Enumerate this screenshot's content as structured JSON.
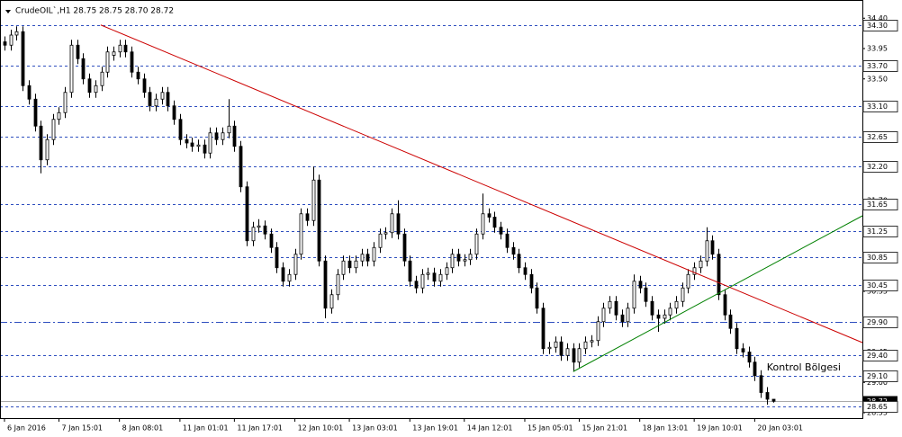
{
  "chart_data": {
    "type": "candlestick",
    "title": "CrudeOIL`,H1  28.75 28.75 28.70 28.72",
    "annotation": {
      "text": "Kontrol Bölgesi",
      "x": 126,
      "price": 29.22
    },
    "xlim": [
      -0.74,
      141.8
    ],
    "ylim": [
      28.47,
      34.67
    ],
    "candle_colors": {
      "up": "#ffffff",
      "down": "#000000",
      "outline": "#000000"
    },
    "level_color": "#2f4fbf",
    "yticks": [
      {
        "value": 34.4,
        "label": "34.40"
      },
      {
        "value": 33.95,
        "label": "33.95"
      },
      {
        "value": 33.5,
        "label": "33.50"
      },
      {
        "value": 33.05,
        "label": "33.05"
      },
      {
        "value": 32.6,
        "label": "32.60"
      },
      {
        "value": 32.15,
        "label": "32.15"
      },
      {
        "value": 31.7,
        "label": "31.70"
      },
      {
        "value": 31.25,
        "label": "31.25"
      },
      {
        "value": 30.8,
        "label": "30.80"
      },
      {
        "value": 30.35,
        "label": "30.35"
      },
      {
        "value": 29.9,
        "label": "29.90"
      },
      {
        "value": 29.45,
        "label": "29.45"
      },
      {
        "value": 29.0,
        "label": "29.00"
      },
      {
        "value": 28.55,
        "label": "28.55"
      }
    ],
    "xticks": [
      {
        "value": 0,
        "label": "6 Jan 2016"
      },
      {
        "value": 9,
        "label": "7 Jan 15:01"
      },
      {
        "value": 19,
        "label": "8 Jan 08:01"
      },
      {
        "value": 29,
        "label": "11 Jan 01:01"
      },
      {
        "value": 38,
        "label": "11 Jan 17:01"
      },
      {
        "value": 48,
        "label": "12 Jan 10:01"
      },
      {
        "value": 57,
        "label": "13 Jan 03:01"
      },
      {
        "value": 67,
        "label": "13 Jan 19:01"
      },
      {
        "value": 76,
        "label": "14 Jan 12:01"
      },
      {
        "value": 86,
        "label": "15 Jan 05:01"
      },
      {
        "value": 95,
        "label": "15 Jan 21:01"
      },
      {
        "value": 105,
        "label": "18 Jan 13:01"
      },
      {
        "value": 114,
        "label": "19 Jan 10:01"
      },
      {
        "value": 124,
        "label": "20 Jan 03:01"
      }
    ],
    "levels": [
      {
        "value": 34.3,
        "label": "34.30",
        "style": "dash"
      },
      {
        "value": 33.7,
        "label": "33.70",
        "style": "dash"
      },
      {
        "value": 33.1,
        "label": "33.10",
        "style": "dash"
      },
      {
        "value": 32.65,
        "label": "32.65",
        "style": "dash"
      },
      {
        "value": 32.2,
        "label": "32.20",
        "style": "dash"
      },
      {
        "value": 31.65,
        "label": "31.65",
        "style": "dash"
      },
      {
        "value": 31.25,
        "label": "31.25",
        "style": "dash"
      },
      {
        "value": 30.85,
        "label": "30.85",
        "style": "dash"
      },
      {
        "value": 30.45,
        "label": "30.45",
        "style": "dash"
      },
      {
        "value": 29.9,
        "label": "29.90",
        "style": "dashdot"
      },
      {
        "value": 29.4,
        "label": "29.40",
        "style": "dash"
      },
      {
        "value": 29.1,
        "label": "29.10",
        "style": "dash"
      },
      {
        "value": 28.65,
        "label": "28.65",
        "style": "dash"
      }
    ],
    "current_price": {
      "value": 28.72,
      "label": "28.72"
    },
    "trendlines": [
      {
        "color": "#cc0000",
        "x": [
          15.9,
          141.8
        ],
        "y": [
          34.3,
          29.59
        ]
      },
      {
        "color": "#008000",
        "x": [
          94.0,
          141.8
        ],
        "y": [
          29.16,
          31.47
        ]
      }
    ],
    "ohlc": [
      [
        34.05,
        34.13,
        33.92,
        34.0
      ],
      [
        34.0,
        34.23,
        33.92,
        34.15
      ],
      [
        34.15,
        34.28,
        34.07,
        34.2
      ],
      [
        34.2,
        34.28,
        33.32,
        33.4
      ],
      [
        33.4,
        33.48,
        33.12,
        33.2
      ],
      [
        33.2,
        33.28,
        32.72,
        32.8
      ],
      [
        32.8,
        32.88,
        32.1,
        32.3
      ],
      [
        32.3,
        32.68,
        32.22,
        32.6
      ],
      [
        32.6,
        32.98,
        32.52,
        32.9
      ],
      [
        32.9,
        33.08,
        32.82,
        33.0
      ],
      [
        33.0,
        33.38,
        32.92,
        33.3
      ],
      [
        33.3,
        34.08,
        33.22,
        34.0
      ],
      [
        34.0,
        34.08,
        33.72,
        33.8
      ],
      [
        33.8,
        33.88,
        33.42,
        33.5
      ],
      [
        33.5,
        33.58,
        33.22,
        33.3
      ],
      [
        33.3,
        33.48,
        33.22,
        33.4
      ],
      [
        33.4,
        33.68,
        33.32,
        33.6
      ],
      [
        33.6,
        33.98,
        33.52,
        33.9
      ],
      [
        33.85,
        33.98,
        33.77,
        33.9
      ],
      [
        33.9,
        34.08,
        33.82,
        34.0
      ],
      [
        34.0,
        34.08,
        33.82,
        33.9
      ],
      [
        33.9,
        33.98,
        33.52,
        33.6
      ],
      [
        33.6,
        33.68,
        33.42,
        33.5
      ],
      [
        33.5,
        33.58,
        33.22,
        33.3
      ],
      [
        33.3,
        33.38,
        33.02,
        33.1
      ],
      [
        33.1,
        33.28,
        33.02,
        33.2
      ],
      [
        33.2,
        33.38,
        33.12,
        33.3
      ],
      [
        33.3,
        33.38,
        33.02,
        33.1
      ],
      [
        33.1,
        33.18,
        32.82,
        32.9
      ],
      [
        32.9,
        32.98,
        32.52,
        32.6
      ],
      [
        32.6,
        32.68,
        32.47,
        32.55
      ],
      [
        32.55,
        32.63,
        32.42,
        32.5
      ],
      [
        32.5,
        32.6,
        32.42,
        32.52
      ],
      [
        32.52,
        32.6,
        32.32,
        32.4
      ],
      [
        32.4,
        32.78,
        32.32,
        32.7
      ],
      [
        32.7,
        32.78,
        32.52,
        32.6
      ],
      [
        32.6,
        32.78,
        32.52,
        32.7
      ],
      [
        32.7,
        33.2,
        32.62,
        32.8
      ],
      [
        32.8,
        32.88,
        32.42,
        32.5
      ],
      [
        32.5,
        32.58,
        31.82,
        31.9
      ],
      [
        31.9,
        31.98,
        31.02,
        31.1
      ],
      [
        31.1,
        31.38,
        31.02,
        31.3
      ],
      [
        31.3,
        31.42,
        31.22,
        31.32
      ],
      [
        31.32,
        31.4,
        31.12,
        31.2
      ],
      [
        31.2,
        31.28,
        30.92,
        31.0
      ],
      [
        31.0,
        31.08,
        30.62,
        30.7
      ],
      [
        30.7,
        30.78,
        30.42,
        30.5
      ],
      [
        30.5,
        30.68,
        30.42,
        30.6
      ],
      [
        30.6,
        30.98,
        30.52,
        30.9
      ],
      [
        30.9,
        31.58,
        30.82,
        31.5
      ],
      [
        31.5,
        31.58,
        31.32,
        31.4
      ],
      [
        31.4,
        32.2,
        31.32,
        32.0
      ],
      [
        32.0,
        32.08,
        30.72,
        30.8
      ],
      [
        30.8,
        30.88,
        29.95,
        30.1
      ],
      [
        30.1,
        30.38,
        30.02,
        30.3
      ],
      [
        30.3,
        30.68,
        30.22,
        30.6
      ],
      [
        30.6,
        30.88,
        30.52,
        30.8
      ],
      [
        30.8,
        30.88,
        30.62,
        30.7
      ],
      [
        30.7,
        30.88,
        30.62,
        30.8
      ],
      [
        30.8,
        30.98,
        30.72,
        30.9
      ],
      [
        30.9,
        30.98,
        30.72,
        30.8
      ],
      [
        30.8,
        31.08,
        30.72,
        31.0
      ],
      [
        31.0,
        31.28,
        30.92,
        31.2
      ],
      [
        31.2,
        31.3,
        31.12,
        31.22
      ],
      [
        31.22,
        31.58,
        31.14,
        31.5
      ],
      [
        31.5,
        31.7,
        31.12,
        31.2
      ],
      [
        31.2,
        31.28,
        30.72,
        30.8
      ],
      [
        30.8,
        30.88,
        30.42,
        30.5
      ],
      [
        30.5,
        30.58,
        30.32,
        30.4
      ],
      [
        30.4,
        30.68,
        30.32,
        30.6
      ],
      [
        30.6,
        30.7,
        30.52,
        30.62
      ],
      [
        30.62,
        30.7,
        30.42,
        30.5
      ],
      [
        30.5,
        30.68,
        30.42,
        30.6
      ],
      [
        30.6,
        30.78,
        30.52,
        30.7
      ],
      [
        30.7,
        30.98,
        30.62,
        30.9
      ],
      [
        30.9,
        30.98,
        30.72,
        30.8
      ],
      [
        30.8,
        30.9,
        30.72,
        30.82
      ],
      [
        30.82,
        30.98,
        30.74,
        30.9
      ],
      [
        30.9,
        31.28,
        30.82,
        31.2
      ],
      [
        31.2,
        31.8,
        31.12,
        31.5
      ],
      [
        31.5,
        31.58,
        31.37,
        31.45
      ],
      [
        31.45,
        31.53,
        31.22,
        31.3
      ],
      [
        31.3,
        31.38,
        31.12,
        31.2
      ],
      [
        31.2,
        31.28,
        30.92,
        31.0
      ],
      [
        31.0,
        31.08,
        30.82,
        30.9
      ],
      [
        30.9,
        30.98,
        30.62,
        30.7
      ],
      [
        30.7,
        30.78,
        30.52,
        30.6
      ],
      [
        30.6,
        30.68,
        30.32,
        30.4
      ],
      [
        30.4,
        30.48,
        30.02,
        30.1
      ],
      [
        30.1,
        30.18,
        29.42,
        29.5
      ],
      [
        29.5,
        29.6,
        29.42,
        29.52
      ],
      [
        29.52,
        29.68,
        29.44,
        29.6
      ],
      [
        29.6,
        29.68,
        29.32,
        29.4
      ],
      [
        29.4,
        29.58,
        29.32,
        29.5
      ],
      [
        29.5,
        29.58,
        29.16,
        29.3
      ],
      [
        29.3,
        29.58,
        29.22,
        29.5
      ],
      [
        29.5,
        29.68,
        29.42,
        29.6
      ],
      [
        29.6,
        29.7,
        29.52,
        29.62
      ],
      [
        29.62,
        29.98,
        29.54,
        29.9
      ],
      [
        29.9,
        30.18,
        29.82,
        30.1
      ],
      [
        30.1,
        30.28,
        30.02,
        30.2
      ],
      [
        30.2,
        30.28,
        29.92,
        30.0
      ],
      [
        30.0,
        30.08,
        29.82,
        29.9
      ],
      [
        29.9,
        30.18,
        29.82,
        30.1
      ],
      [
        30.1,
        30.6,
        30.02,
        30.5
      ],
      [
        30.5,
        30.58,
        30.32,
        30.4
      ],
      [
        30.4,
        30.48,
        30.12,
        30.2
      ],
      [
        30.2,
        30.28,
        29.92,
        30.0
      ],
      [
        30.0,
        30.08,
        29.75,
        29.95
      ],
      [
        29.95,
        30.08,
        29.87,
        30.0
      ],
      [
        30.0,
        30.18,
        29.92,
        30.1
      ],
      [
        30.1,
        30.28,
        30.02,
        30.2
      ],
      [
        30.2,
        30.48,
        30.12,
        30.4
      ],
      [
        30.4,
        30.68,
        30.32,
        30.6
      ],
      [
        30.6,
        30.78,
        30.52,
        30.7
      ],
      [
        30.7,
        30.88,
        30.62,
        30.8
      ],
      [
        30.8,
        31.3,
        30.72,
        31.1
      ],
      [
        31.1,
        31.18,
        30.82,
        30.9
      ],
      [
        30.9,
        30.98,
        30.22,
        30.3
      ],
      [
        30.3,
        30.38,
        29.92,
        30.0
      ],
      [
        30.0,
        30.08,
        29.72,
        29.8
      ],
      [
        29.8,
        29.88,
        29.42,
        29.5
      ],
      [
        29.5,
        29.58,
        29.37,
        29.45
      ],
      [
        29.45,
        29.53,
        29.22,
        29.3
      ],
      [
        29.3,
        29.38,
        29.02,
        29.1
      ],
      [
        29.1,
        29.18,
        28.77,
        28.85
      ],
      [
        28.85,
        28.93,
        28.67,
        28.75
      ],
      [
        28.75,
        28.75,
        28.7,
        28.72
      ]
    ]
  }
}
